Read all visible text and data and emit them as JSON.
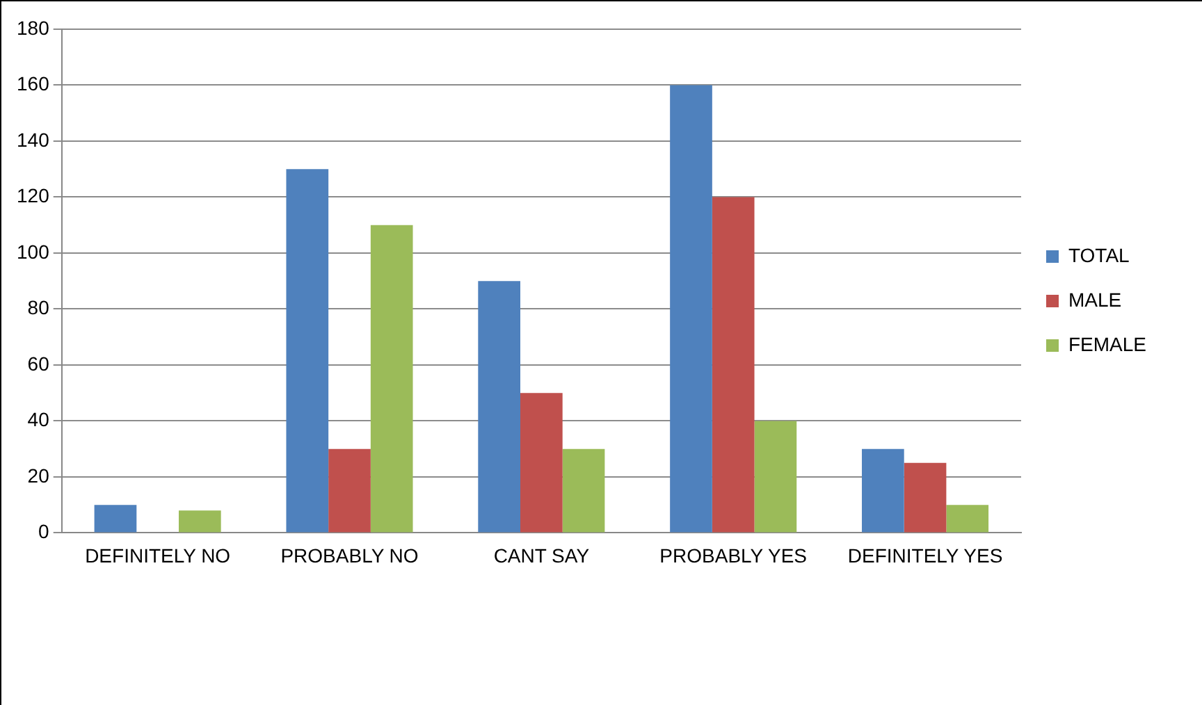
{
  "chart_data": {
    "type": "bar",
    "categories": [
      "DEFINITELY NO",
      "PROBABLY NO",
      "CANT SAY",
      "PROBABLY YES",
      "DEFINITELY YES"
    ],
    "series": [
      {
        "name": "TOTAL",
        "color": "#4f81bd",
        "values": [
          10,
          130,
          90,
          160,
          30
        ]
      },
      {
        "name": "MALE",
        "color": "#c0504d",
        "values": [
          0,
          30,
          50,
          120,
          25
        ]
      },
      {
        "name": "FEMALE",
        "color": "#9bbb59",
        "values": [
          8,
          110,
          30,
          40,
          10
        ]
      }
    ],
    "ylim": [
      0,
      180
    ],
    "yticks": [
      0,
      20,
      40,
      60,
      80,
      100,
      120,
      140,
      160,
      180
    ],
    "grid": "y",
    "legend": "right"
  }
}
